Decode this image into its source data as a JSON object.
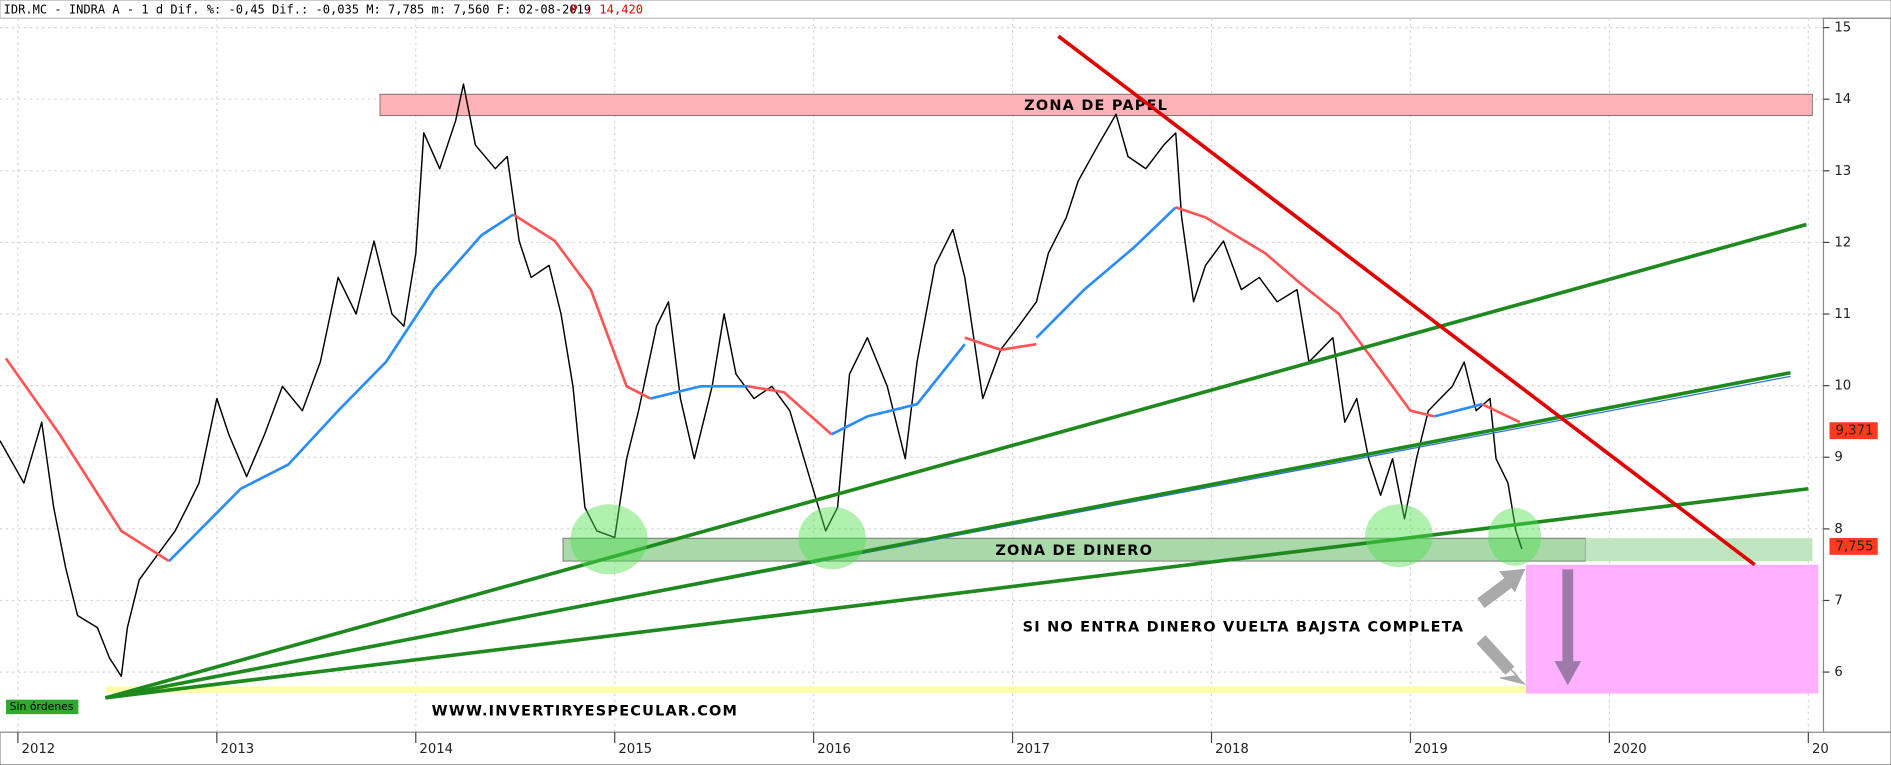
{
  "chart_data": {
    "type": "line",
    "title": "IDR.MC - INDRA A -  1 d Dif. %: -0,45 Dif.: -0,035 M: 7,785 m: 7,560 F: 02-08-2019",
    "title_note": "P : 14,420",
    "xlim": [
      2011.91,
      2021.07
    ],
    "xticks": [
      2012,
      2013,
      2014,
      2015,
      2016,
      2017,
      2018,
      2019,
      2020,
      {
        "value": 2021,
        "label": "20"
      }
    ],
    "ylim": [
      5.16,
      15.13
    ],
    "yticks": [
      6,
      7,
      8,
      9,
      10,
      11,
      12,
      13,
      14,
      15
    ],
    "grid": true,
    "series": [
      {
        "color": "#000000",
        "x": [
          2011.91,
          2012.03,
          2012.12,
          2012.18,
          2012.24,
          2012.3,
          2012.4,
          2012.46,
          2012.52,
          2012.55,
          2012.61,
          2012.7,
          2012.79,
          2012.85,
          2012.91,
          2013.0,
          2013.06,
          2013.15,
          2013.24,
          2013.33,
          2013.43,
          2013.52,
          2013.61,
          2013.7,
          2013.79,
          2013.88,
          2013.94,
          2014.0,
          2014.04,
          2014.12,
          2014.2,
          2014.24,
          2014.3,
          2014.4,
          2014.46,
          2014.52,
          2014.58,
          2014.67,
          2014.73,
          2014.79,
          2014.85,
          2014.91,
          2015.0,
          2015.06,
          2015.12,
          2015.21,
          2015.27,
          2015.33,
          2015.4,
          2015.49,
          2015.55,
          2015.61,
          2015.7,
          2015.79,
          2015.88,
          2015.97,
          2016.06,
          2016.12,
          2016.18,
          2016.27,
          2016.37,
          2016.46,
          2016.52,
          2016.61,
          2016.7,
          2016.76,
          2016.85,
          2016.94,
          2017.03,
          2017.12,
          2017.18,
          2017.27,
          2017.33,
          2017.43,
          2017.52,
          2017.58,
          2017.67,
          2017.76,
          2017.82,
          2017.85,
          2017.91,
          2017.97,
          2018.06,
          2018.15,
          2018.24,
          2018.33,
          2018.43,
          2018.49,
          2018.55,
          2018.61,
          2018.67,
          2018.73,
          2018.79,
          2018.85,
          2018.91,
          2018.97,
          2019.03,
          2019.09,
          2019.15,
          2019.21,
          2019.27,
          2019.33,
          2019.4,
          2019.43,
          2019.49,
          2019.53,
          2019.56
        ],
        "values": [
          9.23,
          8.64,
          9.49,
          8.3,
          7.46,
          6.79,
          6.62,
          6.2,
          5.94,
          6.62,
          7.29,
          7.63,
          7.97,
          8.3,
          8.64,
          9.82,
          9.32,
          8.73,
          9.32,
          9.99,
          9.65,
          10.33,
          11.51,
          11.0,
          12.02,
          11.0,
          10.83,
          11.85,
          13.53,
          13.03,
          13.7,
          14.21,
          13.36,
          13.03,
          13.2,
          12.02,
          11.51,
          11.68,
          11.0,
          9.99,
          8.3,
          7.97,
          7.88,
          8.98,
          9.65,
          10.83,
          11.17,
          9.82,
          8.98,
          9.99,
          11.0,
          10.16,
          9.82,
          9.99,
          9.65,
          8.81,
          7.97,
          8.3,
          10.16,
          10.67,
          9.99,
          8.98,
          10.33,
          11.68,
          12.18,
          11.51,
          9.82,
          10.5,
          10.83,
          11.17,
          11.85,
          12.35,
          12.86,
          13.36,
          13.79,
          13.2,
          13.03,
          13.36,
          13.53,
          12.35,
          11.17,
          11.68,
          12.02,
          11.34,
          11.51,
          11.17,
          11.34,
          10.33,
          10.5,
          10.67,
          9.49,
          9.82,
          8.98,
          8.47,
          8.98,
          8.14,
          8.98,
          9.65,
          9.82,
          9.99,
          10.33,
          9.65,
          9.82,
          8.98,
          8.64,
          7.97,
          7.72
        ]
      },
      {
        "color": "#ff5555",
        "x": [
          2011.94,
          2012.21,
          2012.52,
          2012.76,
          null,
          2014.49,
          2014.7,
          2014.88,
          2015.06,
          2015.18,
          null,
          2015.67,
          2015.85,
          2016.09,
          null,
          2016.76,
          2016.94,
          2017.12,
          null,
          2017.82,
          2017.97,
          2018.27,
          2018.45,
          2018.64,
          2018.82,
          2019.0,
          2019.12,
          null,
          2019.36,
          2019.55
        ],
        "values": [
          10.38,
          9.32,
          7.97,
          7.55,
          null,
          12.39,
          12.02,
          11.34,
          9.99,
          9.82,
          null,
          9.99,
          9.91,
          9.32,
          null,
          10.67,
          10.5,
          10.58,
          null,
          12.49,
          12.35,
          11.85,
          11.42,
          11.0,
          10.33,
          9.65,
          9.57,
          null,
          9.74,
          9.49
        ]
      },
      {
        "color": "#2a8cff",
        "x": [
          2012.76,
          2013.12,
          2013.36,
          2013.61,
          2013.85,
          2014.09,
          2014.33,
          2014.49,
          null,
          2015.18,
          2015.43,
          2015.67,
          null,
          2016.09,
          2016.27,
          2016.52,
          2016.76,
          null,
          2017.12,
          2017.36,
          2017.61,
          2017.82,
          null,
          2019.12,
          2019.36
        ],
        "values": [
          7.55,
          8.56,
          8.9,
          9.65,
          10.33,
          11.34,
          12.1,
          12.39,
          null,
          9.82,
          9.99,
          9.99,
          null,
          9.32,
          9.57,
          9.74,
          10.58,
          null,
          10.67,
          11.34,
          11.93,
          12.49,
          null,
          9.57,
          9.74
        ]
      }
    ],
    "lines": [
      {
        "color": "#2a6fd6",
        "x": [
          2012.44,
          2020.91
        ],
        "values": [
          5.64,
          10.13
        ]
      },
      {
        "color": "#1e8a1e",
        "x": [
          2012.44,
          2020.99
        ],
        "values": [
          5.64,
          12.25
        ]
      },
      {
        "color": "#1e8a1e",
        "x": [
          2012.44,
          2020.91
        ],
        "values": [
          5.64,
          10.18
        ]
      },
      {
        "color": "#1e8a1e",
        "x": [
          2012.44,
          2021.0
        ],
        "values": [
          5.64,
          8.56
        ]
      },
      {
        "color": "#e00000",
        "x": [
          2017.23,
          2020.73
        ],
        "values": [
          14.88,
          7.5
        ]
      }
    ],
    "zones": [
      {
        "label": "ZONA DE PAPEL",
        "x": [
          2013.82,
          2021.02
        ],
        "y": [
          13.77,
          14.07
        ],
        "color": "#ffb3b8"
      },
      {
        "label": "ZONA DE DINERO",
        "x": [
          2014.74,
          2019.88
        ],
        "y": [
          7.55,
          7.87
        ],
        "color": "#a9d8a9"
      },
      {
        "x": [
          2019.88,
          2021.02
        ],
        "y": [
          7.55,
          7.87
        ],
        "color": "#bfe6bf"
      },
      {
        "x": [
          2019.58,
          2021.05
        ],
        "y": [
          5.7,
          7.5
        ],
        "color": "#ffb0ff"
      },
      {
        "x": [
          2012.44,
          2019.58
        ],
        "y": [
          5.71,
          5.8
        ],
        "color": "#ffffa8"
      }
    ],
    "price_tags": [
      {
        "value": 9.371,
        "label": "9,371"
      },
      {
        "value": 7.755,
        "label": "7,755"
      }
    ],
    "annotations": [
      "SI NO ENTRA DINERO VUELTA BAJSTA COMPLETA",
      "WWW.INVERTIRYESPECULAR.COM",
      "Sin órdenes"
    ]
  }
}
